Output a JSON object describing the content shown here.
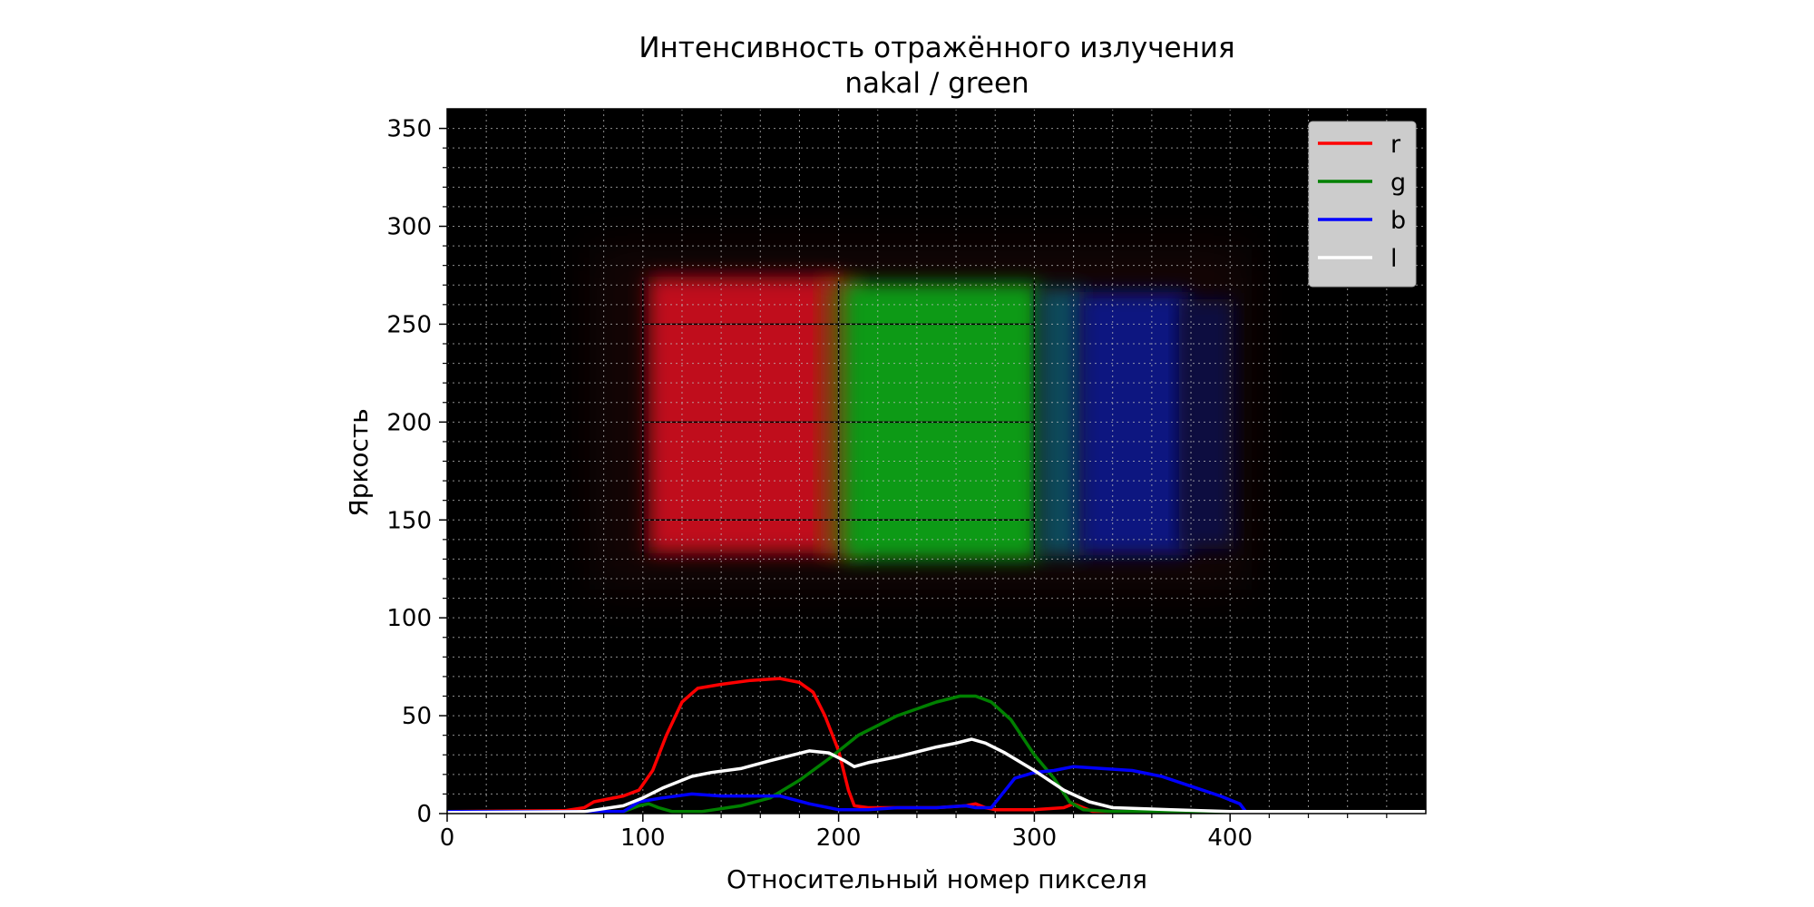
{
  "chart_data": {
    "type": "line",
    "title": "Интенсивность отражённого излучения",
    "subtitle": "nakal / green",
    "xlabel": "Относительный номер пикселя",
    "ylabel": "Яркость",
    "xlim": [
      0,
      500
    ],
    "ylim": [
      0,
      360
    ],
    "x_ticks": [
      0,
      100,
      200,
      300,
      400
    ],
    "y_ticks": [
      0,
      50,
      100,
      150,
      200,
      250,
      300,
      350
    ],
    "grid": true,
    "background": "photo of reflected spectrum: red, green and blue bands on black",
    "legend_position": "top-right",
    "series": [
      {
        "name": "r",
        "color": "#ff0000",
        "points": [
          [
            0,
            1
          ],
          [
            60,
            1.5
          ],
          [
            70,
            3
          ],
          [
            75,
            6
          ],
          [
            90,
            9
          ],
          [
            98,
            12
          ],
          [
            105,
            22
          ],
          [
            112,
            40
          ],
          [
            120,
            57
          ],
          [
            128,
            64
          ],
          [
            140,
            66
          ],
          [
            155,
            68
          ],
          [
            170,
            69
          ],
          [
            180,
            67
          ],
          [
            187,
            62
          ],
          [
            193,
            50
          ],
          [
            200,
            32
          ],
          [
            205,
            12
          ],
          [
            208,
            4
          ],
          [
            215,
            3
          ],
          [
            230,
            3
          ],
          [
            250,
            3
          ],
          [
            265,
            4
          ],
          [
            270,
            5
          ],
          [
            275,
            3
          ],
          [
            280,
            2
          ],
          [
            300,
            2
          ],
          [
            315,
            3
          ],
          [
            320,
            5
          ],
          [
            325,
            3
          ],
          [
            330,
            1
          ],
          [
            400,
            1
          ],
          [
            500,
            1
          ]
        ]
      },
      {
        "name": "g",
        "color": "#008000",
        "points": [
          [
            0,
            1
          ],
          [
            90,
            1
          ],
          [
            98,
            4
          ],
          [
            103,
            5
          ],
          [
            108,
            3
          ],
          [
            115,
            1
          ],
          [
            130,
            1
          ],
          [
            150,
            4
          ],
          [
            165,
            8
          ],
          [
            180,
            17
          ],
          [
            195,
            28
          ],
          [
            210,
            40
          ],
          [
            230,
            50
          ],
          [
            250,
            57
          ],
          [
            262,
            60
          ],
          [
            270,
            60
          ],
          [
            278,
            57
          ],
          [
            288,
            48
          ],
          [
            300,
            30
          ],
          [
            310,
            18
          ],
          [
            318,
            6
          ],
          [
            325,
            2
          ],
          [
            340,
            1
          ],
          [
            500,
            1
          ]
        ]
      },
      {
        "name": "b",
        "color": "#0000ff",
        "points": [
          [
            0,
            1
          ],
          [
            90,
            1
          ],
          [
            98,
            6
          ],
          [
            110,
            8
          ],
          [
            125,
            10
          ],
          [
            140,
            9
          ],
          [
            155,
            9
          ],
          [
            170,
            9
          ],
          [
            185,
            5
          ],
          [
            200,
            2
          ],
          [
            215,
            2
          ],
          [
            230,
            3
          ],
          [
            250,
            3
          ],
          [
            265,
            4
          ],
          [
            270,
            3
          ],
          [
            278,
            3
          ],
          [
            282,
            8
          ],
          [
            290,
            18
          ],
          [
            300,
            21
          ],
          [
            310,
            22
          ],
          [
            320,
            24
          ],
          [
            335,
            23
          ],
          [
            350,
            22
          ],
          [
            365,
            19
          ],
          [
            380,
            14
          ],
          [
            395,
            9
          ],
          [
            405,
            5
          ],
          [
            408,
            1
          ],
          [
            500,
            1
          ]
        ]
      },
      {
        "name": "l",
        "color": "#ffffff",
        "points": [
          [
            0,
            0.5
          ],
          [
            70,
            1
          ],
          [
            90,
            4
          ],
          [
            100,
            8
          ],
          [
            110,
            13
          ],
          [
            125,
            19
          ],
          [
            135,
            21
          ],
          [
            150,
            23
          ],
          [
            165,
            27
          ],
          [
            185,
            32
          ],
          [
            195,
            31
          ],
          [
            203,
            27
          ],
          [
            208,
            24
          ],
          [
            215,
            26
          ],
          [
            230,
            29
          ],
          [
            250,
            34
          ],
          [
            260,
            36
          ],
          [
            268,
            38
          ],
          [
            275,
            36
          ],
          [
            285,
            31
          ],
          [
            300,
            22
          ],
          [
            315,
            12
          ],
          [
            328,
            6
          ],
          [
            340,
            3
          ],
          [
            370,
            2
          ],
          [
            400,
            1
          ],
          [
            500,
            1
          ]
        ]
      }
    ]
  }
}
